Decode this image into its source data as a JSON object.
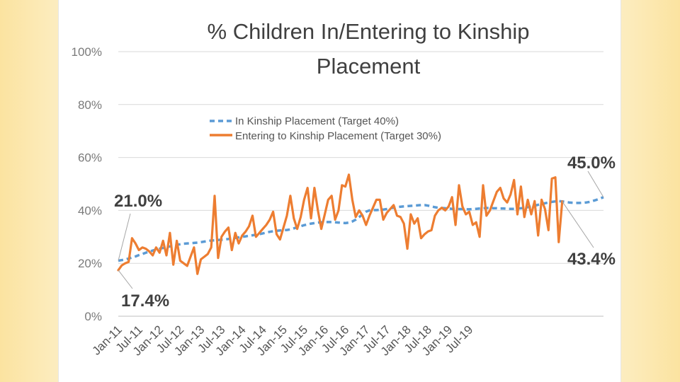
{
  "chart_data": {
    "type": "line",
    "title_lines": [
      "% Children In/Entering to Kinship",
      "Placement"
    ],
    "y_ticks": [
      "0%",
      "20%",
      "40%",
      "60%",
      "80%",
      "100%"
    ],
    "ylim": [
      0,
      100
    ],
    "x_tick_labels": [
      "Jan-11",
      "Jul-11",
      "Jan-12",
      "Jul-12",
      "Jan-13",
      "Jul-13",
      "Jan-14",
      "Jul-14",
      "Jan-15",
      "Jul-15",
      "Jan-16",
      "Jul-16",
      "Jan-17",
      "Jul-17",
      "Jan-18",
      "Jul-18",
      "Jan-19",
      "Jul-19"
    ],
    "series": [
      {
        "name": "In Kinship Placement (Target 40%)",
        "color": "#5b9bd5",
        "style": "dashed",
        "values": [
          21.0,
          21.2,
          21.4,
          21.8,
          22.2,
          22.6,
          23.1,
          23.5,
          24.0,
          24.4,
          24.8,
          25.2,
          25.5,
          25.8,
          26.1,
          26.4,
          26.7,
          27.0,
          27.2,
          27.4,
          27.5,
          27.6,
          27.7,
          27.8,
          28.0,
          28.2,
          28.4,
          28.6,
          28.7,
          28.8,
          28.9,
          29.0,
          29.2,
          29.4,
          29.6,
          29.8,
          30.0,
          30.2,
          30.4,
          30.6,
          30.8,
          31.0,
          31.3,
          31.6,
          31.9,
          32.1,
          32.3,
          32.4,
          32.5,
          32.6,
          32.8,
          33.2,
          33.6,
          34.0,
          34.4,
          34.7,
          35.0,
          35.2,
          35.4,
          35.5,
          35.6,
          35.6,
          35.6,
          35.5,
          35.4,
          35.3,
          35.2,
          35.4,
          35.8,
          36.5,
          37.5,
          38.5,
          39.5,
          40.0,
          40.1,
          40.1,
          40.2,
          40.3,
          40.5,
          40.8,
          41.0,
          41.2,
          41.4,
          41.5,
          41.6,
          41.7,
          41.8,
          41.9,
          42.0,
          42.0,
          41.8,
          41.5,
          41.2,
          41.0,
          40.9,
          40.8,
          40.7,
          40.6,
          40.5,
          40.5,
          40.5,
          40.4,
          40.4,
          40.5,
          40.6,
          40.7,
          40.8,
          40.9,
          40.9,
          40.8,
          40.8,
          40.7,
          40.7,
          40.6,
          40.6,
          40.6,
          40.7,
          40.8,
          41.0,
          41.2,
          41.5,
          41.8,
          42.1,
          42.4,
          42.7,
          43.0,
          43.2,
          43.4,
          43.5,
          43.4,
          43.2,
          43.0,
          42.9,
          42.8,
          42.8,
          42.9,
          43.0,
          43.2,
          43.6,
          44.0,
          44.5,
          45.0
        ]
      },
      {
        "name": "Entering to Kinship Placement (Target 30%)",
        "color": "#ed7d31",
        "style": "solid",
        "values": [
          17.4,
          19.2,
          20.0,
          20.5,
          29.5,
          27.5,
          25.0,
          26.0,
          25.5,
          24.5,
          23.0,
          26.0,
          24.0,
          28.5,
          23.0,
          31.5,
          19.5,
          28.5,
          21.0,
          20.0,
          19.0,
          22.5,
          26.0,
          16.0,
          21.5,
          22.5,
          23.5,
          26.0,
          45.5,
          22.0,
          30.0,
          32.0,
          33.5,
          25.0,
          31.5,
          27.5,
          30.5,
          32.0,
          34.0,
          38.0,
          30.0,
          31.5,
          33.0,
          34.5,
          36.5,
          39.5,
          31.0,
          29.0,
          33.5,
          38.0,
          45.5,
          37.0,
          33.0,
          37.5,
          44.0,
          48.5,
          37.0,
          48.5,
          40.0,
          33.0,
          38.5,
          44.0,
          45.5,
          36.5,
          40.0,
          49.5,
          49.0,
          53.5,
          44.0,
          37.5,
          40.0,
          38.0,
          34.5,
          38.0,
          41.0,
          44.0,
          44.0,
          36.5,
          39.0,
          40.5,
          42.0,
          38.0,
          37.5,
          35.0,
          25.5,
          38.5,
          35.0,
          37.0,
          29.5,
          31.0,
          32.0,
          32.5,
          38.0,
          40.0,
          41.0,
          40.0,
          41.5,
          45.0,
          34.5,
          49.5,
          41.5,
          38.5,
          39.5,
          34.5,
          35.5,
          30.0,
          49.5,
          38.0,
          40.0,
          43.5,
          47.0,
          48.5,
          44.5,
          43.0,
          46.0,
          51.5,
          38.5,
          49.0,
          37.5,
          44.0,
          38.5,
          43.5,
          30.5,
          44.0,
          40.5,
          32.5,
          52.0,
          52.5,
          28.0,
          43.4
        ]
      }
    ],
    "callouts": [
      {
        "text": "21.0%",
        "series": 0,
        "index": 0
      },
      {
        "text": "17.4%",
        "series": 1,
        "index": 0
      },
      {
        "text": "45.0%",
        "series": 0,
        "index": "last"
      },
      {
        "text": "43.4%",
        "series": 1,
        "index": "last"
      }
    ]
  }
}
